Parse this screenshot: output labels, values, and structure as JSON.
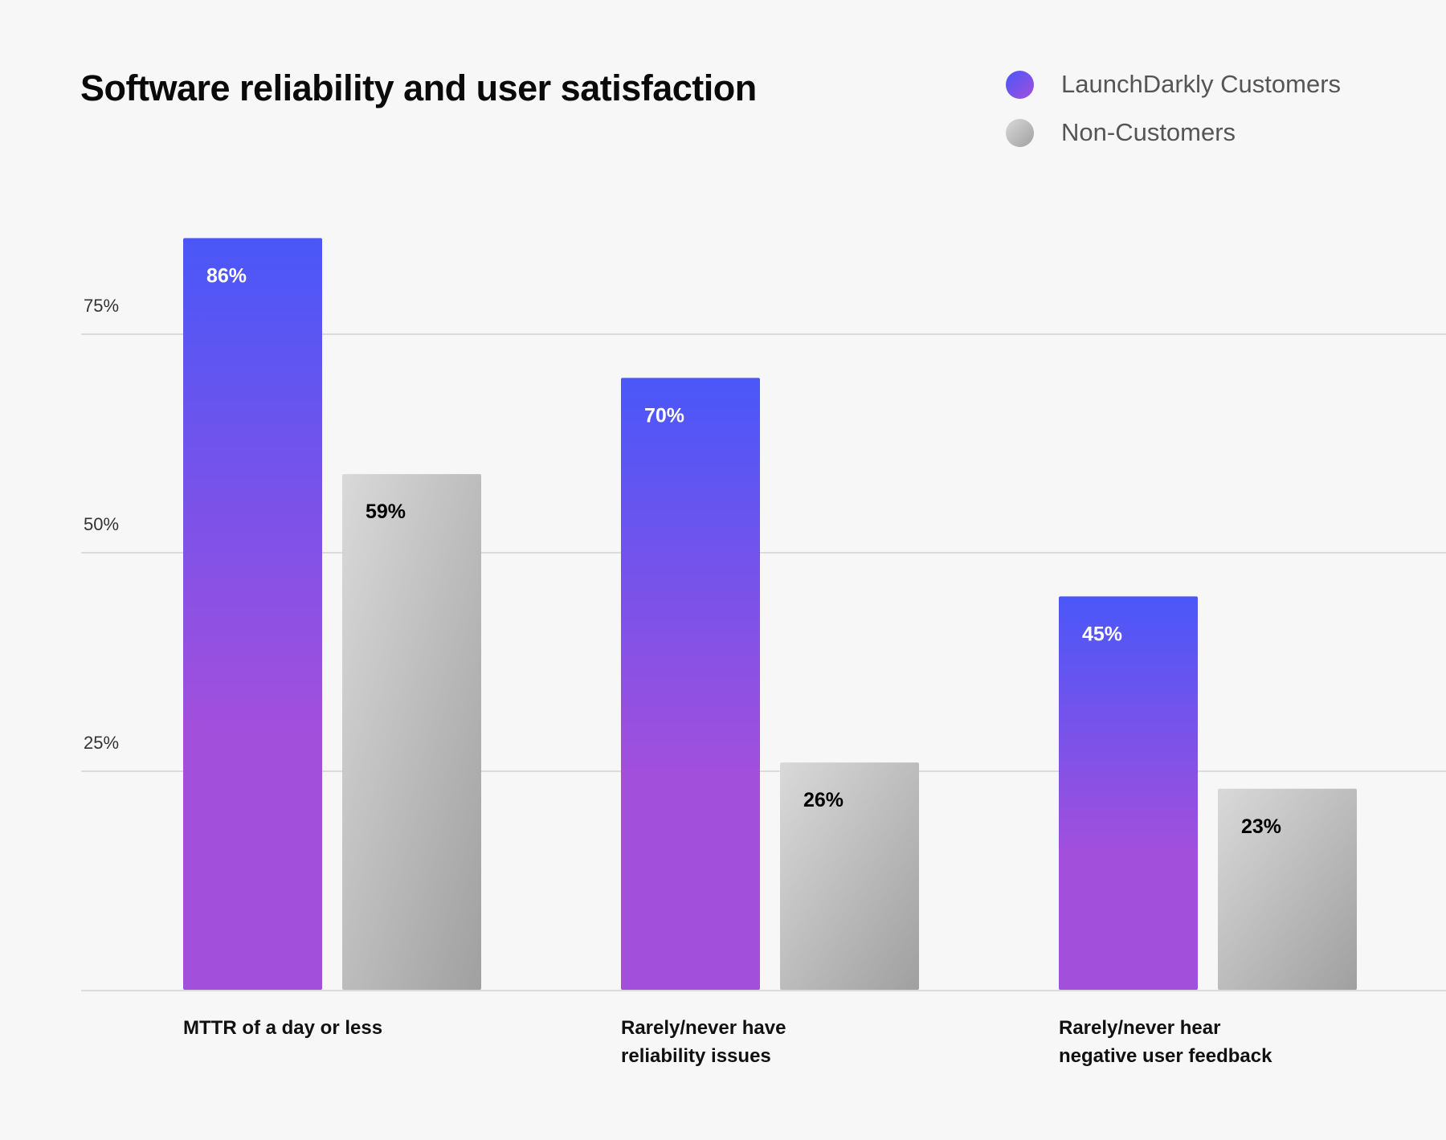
{
  "chart_data": {
    "type": "bar",
    "title": "Software reliability and user satisfaction",
    "categories": [
      [
        "MTTR of a day or less"
      ],
      [
        "Rarely/never have",
        "reliability issues"
      ],
      [
        "Rarely/never hear",
        "negative user feedback"
      ]
    ],
    "series": [
      {
        "name": "LaunchDarkly Customers",
        "values": [
          86,
          70,
          45
        ],
        "labels": [
          "86%",
          "70%",
          "45%"
        ],
        "color_top": "#4a57f8",
        "color_bottom": "#a24fdc",
        "label_color": "#ffffff"
      },
      {
        "name": "Non-Customers",
        "values": [
          59,
          26,
          23
        ],
        "labels": [
          "59%",
          "26%",
          "23%"
        ],
        "color_top": "#d9d9d9",
        "color_bottom": "#a0a0a0",
        "label_color": "#000000"
      }
    ],
    "yticks": [
      25,
      50,
      75
    ],
    "ytick_labels": [
      "25%",
      "50%",
      "75%"
    ],
    "ylim": [
      0,
      100
    ],
    "grid": true,
    "legend_position": "top-right",
    "xlabel": "",
    "ylabel": ""
  }
}
